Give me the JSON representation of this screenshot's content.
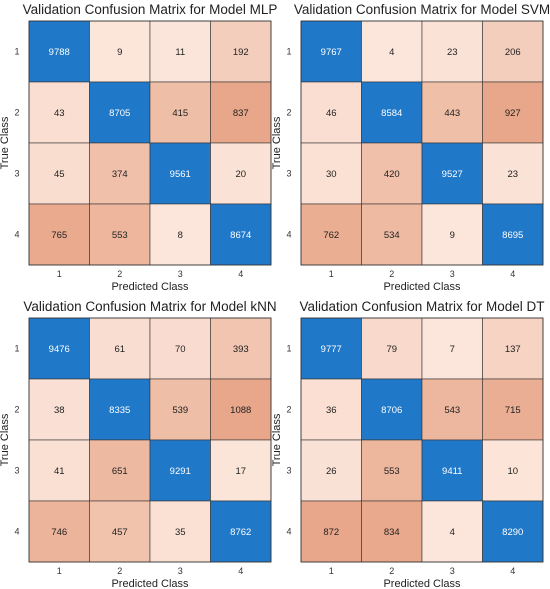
{
  "chart_data": [
    {
      "type": "heatmap",
      "title": "Validation Confusion Matrix for Model MLP",
      "xlabel": "Predicted Class",
      "ylabel": "True Class",
      "x_categories": [
        "1",
        "2",
        "3",
        "4"
      ],
      "y_categories": [
        "1",
        "2",
        "3",
        "4"
      ],
      "values": [
        [
          9788,
          9,
          11,
          192
        ],
        [
          43,
          8705,
          415,
          837
        ],
        [
          45,
          374,
          9561,
          20
        ],
        [
          765,
          553,
          8,
          8674
        ]
      ]
    },
    {
      "type": "heatmap",
      "title": "Validation Confusion Matrix for Model SVM",
      "xlabel": "Predicted Class",
      "ylabel": "True Class",
      "x_categories": [
        "1",
        "2",
        "3",
        "4"
      ],
      "y_categories": [
        "1",
        "2",
        "3",
        "4"
      ],
      "values": [
        [
          9767,
          4,
          23,
          206
        ],
        [
          46,
          8584,
          443,
          927
        ],
        [
          30,
          420,
          9527,
          23
        ],
        [
          762,
          534,
          9,
          8695
        ]
      ]
    },
    {
      "type": "heatmap",
      "title": "Validation Confusion Matrix for Model kNN",
      "xlabel": "Predicted Class",
      "ylabel": "True Class",
      "x_categories": [
        "1",
        "2",
        "3",
        "4"
      ],
      "y_categories": [
        "1",
        "2",
        "3",
        "4"
      ],
      "values": [
        [
          9476,
          61,
          70,
          393
        ],
        [
          38,
          8335,
          539,
          1088
        ],
        [
          41,
          651,
          9291,
          17
        ],
        [
          746,
          457,
          35,
          8762
        ]
      ]
    },
    {
      "type": "heatmap",
      "title": "Validation Confusion Matrix for Model DT",
      "xlabel": "Predicted Class",
      "ylabel": "True Class",
      "x_categories": [
        "1",
        "2",
        "3",
        "4"
      ],
      "y_categories": [
        "1",
        "2",
        "3",
        "4"
      ],
      "values": [
        [
          9777,
          79,
          7,
          137
        ],
        [
          36,
          8706,
          543,
          715
        ],
        [
          26,
          553,
          9411,
          10
        ],
        [
          872,
          834,
          4,
          8290
        ]
      ]
    }
  ],
  "colors": {
    "diagonal_fill": "#1f78c8",
    "diagonal_text": "#ffffff",
    "offdiag_light": "#fde9df",
    "offdiag_dark": "#e8a78a",
    "offdiag_text": "#222222",
    "cell_border": "#333333"
  }
}
